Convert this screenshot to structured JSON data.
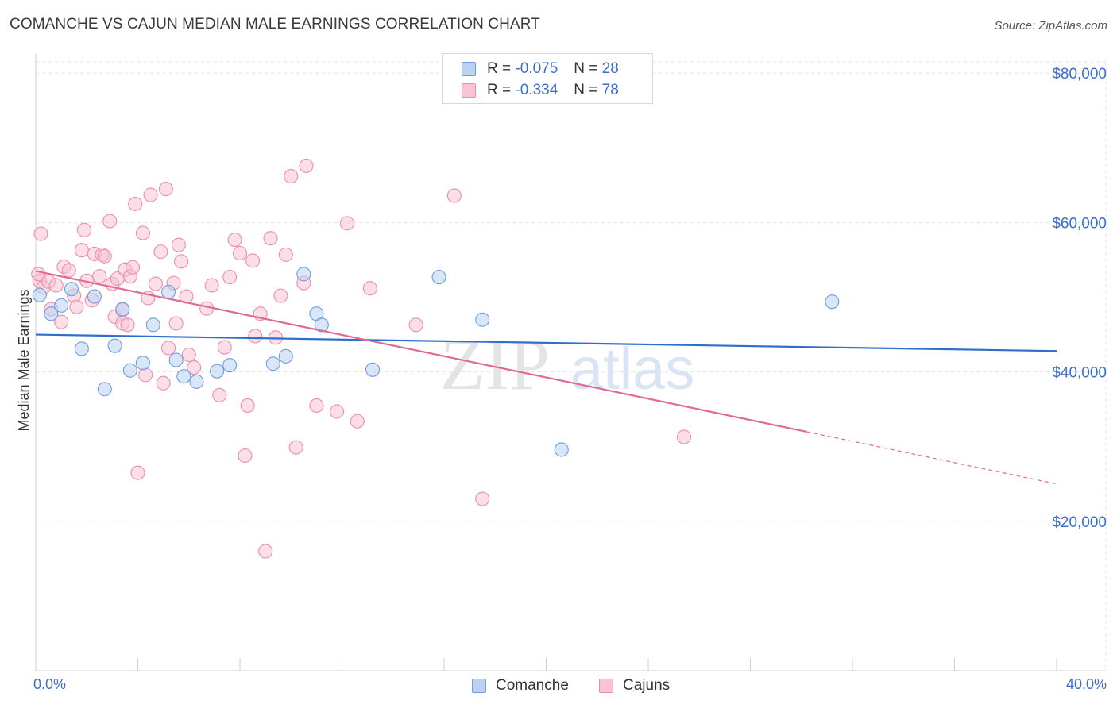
{
  "title": "COMANCHE VS CAJUN MEDIAN MALE EARNINGS CORRELATION CHART",
  "source": "Source: ZipAtlas.com",
  "watermark": {
    "part1": "ZIP",
    "part2": "atlas"
  },
  "legend_stats": [
    {
      "r_label": "R =",
      "r_value": "-0.075",
      "n_label": "N =",
      "n_value": "28"
    },
    {
      "r_label": "R =",
      "r_value": "-0.334",
      "n_label": "N =",
      "n_value": "78"
    }
  ],
  "colors": {
    "comanche_fill": "#b9d1f2",
    "comanche_stroke": "#6d9ee0",
    "comanche_line": "#2f6fcc",
    "cajun_fill": "#f8c3d3",
    "cajun_stroke": "#ec8eab",
    "cajun_line": "#e06a95",
    "axis_text": "#3b6fc9",
    "grid": "#e3e3e3"
  },
  "chart_data": {
    "type": "scatter",
    "title": "COMANCHE VS CAJUN MEDIAN MALE EARNINGS CORRELATION CHART",
    "xlabel": "",
    "ylabel": "Median Male Earnings",
    "xlim": [
      0,
      40
    ],
    "ylim": [
      0,
      83000
    ],
    "x_tick_labels": [
      "0.0%",
      "40.0%"
    ],
    "y_ticks": [
      20000,
      40000,
      60000,
      80000
    ],
    "y_tick_labels": [
      "$20,000",
      "$40,000",
      "$60,000",
      "$80,000"
    ],
    "series": [
      {
        "name": "Comanche",
        "r": -0.075,
        "n": 28,
        "trend": {
          "x0": 0,
          "y0": 45000,
          "x1": 40,
          "y1": 42800
        },
        "points": [
          [
            0.15,
            50300
          ],
          [
            0.6,
            47800
          ],
          [
            1.0,
            48900
          ],
          [
            1.4,
            51100
          ],
          [
            1.8,
            43100
          ],
          [
            2.3,
            50100
          ],
          [
            2.7,
            37700
          ],
          [
            3.1,
            43500
          ],
          [
            3.4,
            48400
          ],
          [
            3.7,
            40200
          ],
          [
            4.2,
            41200
          ],
          [
            4.6,
            46300
          ],
          [
            5.2,
            50700
          ],
          [
            5.5,
            41600
          ],
          [
            5.8,
            39400
          ],
          [
            6.3,
            38700
          ],
          [
            7.1,
            40100
          ],
          [
            7.6,
            40900
          ],
          [
            9.3,
            41100
          ],
          [
            9.8,
            42100
          ],
          [
            10.5,
            53100
          ],
          [
            11.0,
            47800
          ],
          [
            11.2,
            46300
          ],
          [
            13.2,
            40300
          ],
          [
            15.8,
            52700
          ],
          [
            17.5,
            47000
          ],
          [
            20.6,
            29600
          ],
          [
            31.2,
            49400
          ]
        ]
      },
      {
        "name": "Cajuns",
        "r": -0.334,
        "n": 78,
        "trend": {
          "x0": 0,
          "y0": 53500,
          "x1": 30.2,
          "y1": 32000,
          "dash_x1": 40,
          "dash_y1": 25000
        },
        "points": [
          [
            0.15,
            52200
          ],
          [
            0.2,
            58500
          ],
          [
            0.3,
            51300
          ],
          [
            0.5,
            52100
          ],
          [
            0.6,
            48400
          ],
          [
            0.8,
            51600
          ],
          [
            1.0,
            46700
          ],
          [
            1.1,
            54100
          ],
          [
            1.3,
            53600
          ],
          [
            1.5,
            50200
          ],
          [
            1.6,
            48700
          ],
          [
            1.8,
            56300
          ],
          [
            1.9,
            59000
          ],
          [
            2.0,
            52200
          ],
          [
            2.2,
            49600
          ],
          [
            2.3,
            55800
          ],
          [
            2.5,
            52800
          ],
          [
            2.6,
            55700
          ],
          [
            2.7,
            55500
          ],
          [
            2.9,
            60200
          ],
          [
            3.0,
            51800
          ],
          [
            3.1,
            47400
          ],
          [
            3.2,
            52500
          ],
          [
            3.4,
            46500
          ],
          [
            3.4,
            48300
          ],
          [
            3.5,
            53700
          ],
          [
            3.6,
            46300
          ],
          [
            3.7,
            52800
          ],
          [
            3.8,
            54000
          ],
          [
            3.9,
            62500
          ],
          [
            4.0,
            26500
          ],
          [
            4.2,
            58600
          ],
          [
            4.3,
            39600
          ],
          [
            4.4,
            49900
          ],
          [
            4.5,
            63700
          ],
          [
            4.7,
            51800
          ],
          [
            4.9,
            56100
          ],
          [
            5.0,
            38500
          ],
          [
            5.1,
            64500
          ],
          [
            5.2,
            43200
          ],
          [
            5.4,
            51900
          ],
          [
            5.5,
            46500
          ],
          [
            5.6,
            57000
          ],
          [
            5.7,
            54800
          ],
          [
            5.9,
            50100
          ],
          [
            6.0,
            42300
          ],
          [
            6.2,
            40600
          ],
          [
            6.7,
            48500
          ],
          [
            6.9,
            51600
          ],
          [
            7.2,
            36900
          ],
          [
            7.4,
            43300
          ],
          [
            7.6,
            52700
          ],
          [
            7.8,
            57700
          ],
          [
            8.0,
            55900
          ],
          [
            8.2,
            28800
          ],
          [
            8.3,
            35500
          ],
          [
            8.5,
            54900
          ],
          [
            8.6,
            44800
          ],
          [
            8.8,
            47800
          ],
          [
            9.0,
            16000
          ],
          [
            9.2,
            57900
          ],
          [
            9.4,
            44600
          ],
          [
            9.6,
            50200
          ],
          [
            9.8,
            55700
          ],
          [
            10.0,
            66200
          ],
          [
            10.2,
            29900
          ],
          [
            10.5,
            51900
          ],
          [
            10.6,
            67600
          ],
          [
            11.0,
            35500
          ],
          [
            11.8,
            34700
          ],
          [
            12.2,
            59900
          ],
          [
            12.6,
            33400
          ],
          [
            13.1,
            51200
          ],
          [
            14.9,
            46300
          ],
          [
            16.4,
            63600
          ],
          [
            17.5,
            23000
          ],
          [
            25.4,
            31300
          ],
          [
            0.1,
            53100
          ]
        ]
      }
    ]
  }
}
